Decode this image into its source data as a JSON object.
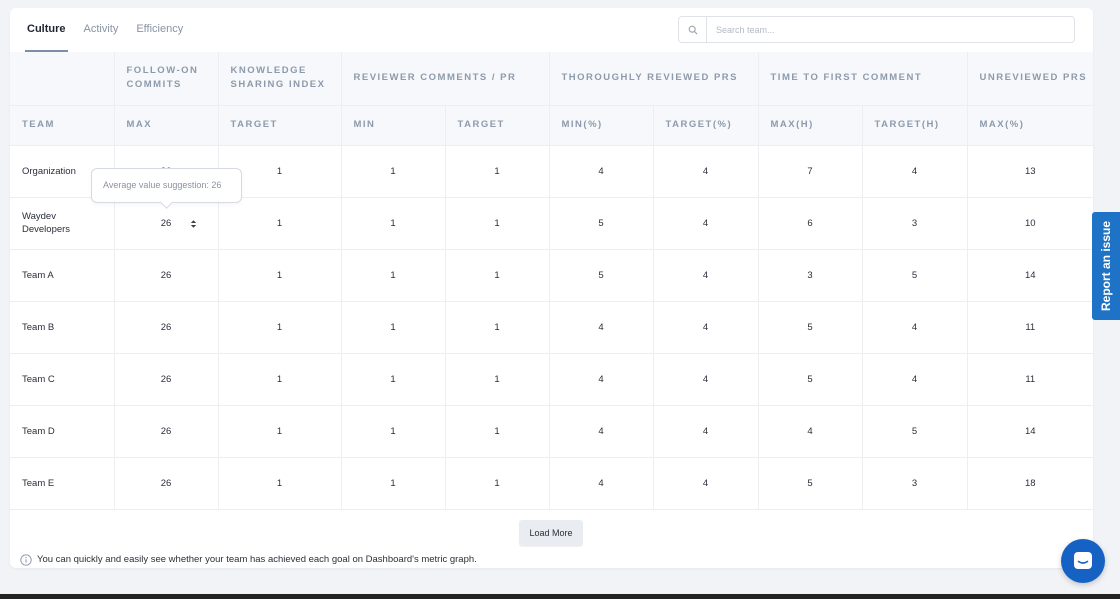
{
  "tabs": [
    {
      "label": "Culture",
      "active": true
    },
    {
      "label": "Activity",
      "active": false
    },
    {
      "label": "Efficiency",
      "active": false
    }
  ],
  "search": {
    "placeholder": "Search team..."
  },
  "table": {
    "group_headers": {
      "follow_on_commits": "FOLLOW-ON COMMITS",
      "knowledge_sharing_index": "KNOWLEDGE SHARING INDEX",
      "reviewer_comments_pr": "REVIEWER COMMENTS / PR",
      "thoroughly_reviewed_prs": "THOROUGHLY REVIEWED PRS",
      "time_to_first_comment": "TIME TO FIRST COMMENT",
      "unreviewed_prs": "UNREVIEWED PRS"
    },
    "sub_headers": [
      "TEAM",
      "MAX",
      "TARGET",
      "MIN",
      "TARGET",
      "MIN(%)",
      "TARGET(%)",
      "MAX(H)",
      "TARGET(H)",
      "MAX(%)"
    ],
    "rows": [
      {
        "team": "Organization",
        "cells": [
          "26",
          "1",
          "1",
          "1",
          "4",
          "4",
          "7",
          "4",
          "13"
        ]
      },
      {
        "team": "Waydev Developers",
        "cells": [
          "26",
          "1",
          "1",
          "1",
          "5",
          "4",
          "6",
          "3",
          "10"
        ]
      },
      {
        "team": "Team A",
        "cells": [
          "26",
          "1",
          "1",
          "1",
          "5",
          "4",
          "3",
          "5",
          "14"
        ]
      },
      {
        "team": "Team B",
        "cells": [
          "26",
          "1",
          "1",
          "1",
          "4",
          "4",
          "5",
          "4",
          "11"
        ]
      },
      {
        "team": "Team C",
        "cells": [
          "26",
          "1",
          "1",
          "1",
          "4",
          "4",
          "5",
          "4",
          "11"
        ]
      },
      {
        "team": "Team D",
        "cells": [
          "26",
          "1",
          "1",
          "1",
          "4",
          "4",
          "4",
          "5",
          "14"
        ]
      },
      {
        "team": "Team E",
        "cells": [
          "26",
          "1",
          "1",
          "1",
          "4",
          "4",
          "5",
          "3",
          "18"
        ]
      }
    ]
  },
  "tooltip": {
    "text": "Average value suggestion: 26"
  },
  "load_more": {
    "label": "Load More"
  },
  "footnote": {
    "text": "You can quickly and easily see whether your team has achieved each goal on Dashboard's metric graph."
  },
  "report_issue": {
    "label": "Report an issue"
  },
  "colors": {
    "accent": "#1f73c7",
    "chat": "#1662c4",
    "header_bg": "#f6f8fb",
    "header_text": "#8d9aab"
  },
  "icons": {
    "search": "search-icon",
    "stepper": "stepper-icon",
    "info": "info-icon",
    "chat": "chat-icon"
  }
}
